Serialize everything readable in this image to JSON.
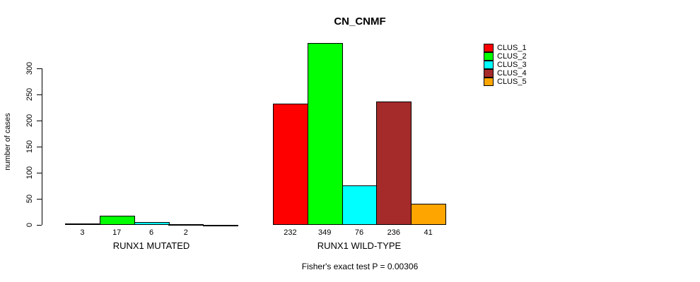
{
  "title": "CN_CNMF",
  "ylabel": "number of cases",
  "footer": "Fisher's exact test P = 0.00306",
  "legend": {
    "items": [
      {
        "label": "CLUS_1",
        "color": "#FF0000"
      },
      {
        "label": "CLUS_2",
        "color": "#00FF00"
      },
      {
        "label": "CLUS_3",
        "color": "#00FFFF"
      },
      {
        "label": "CLUS_4",
        "color": "#A52A2A"
      },
      {
        "label": "CLUS_5",
        "color": "#FFA500"
      }
    ]
  },
  "chart_data": {
    "type": "bar",
    "title": "CN_CNMF",
    "ylabel": "number of cases",
    "xlabel": "",
    "ylim": [
      0,
      300
    ],
    "yticks": [
      0,
      50,
      100,
      150,
      200,
      250,
      300
    ],
    "grid": false,
    "legend_position": "top-right",
    "series_names": [
      "CLUS_1",
      "CLUS_2",
      "CLUS_3",
      "CLUS_4",
      "CLUS_5"
    ],
    "series_colors": [
      "#FF0000",
      "#00FF00",
      "#00FFFF",
      "#A52A2A",
      "#FFA500"
    ],
    "groups": [
      {
        "label": "RUNX1 MUTATED",
        "values": [
          3,
          17,
          6,
          2,
          0
        ],
        "bar_labels": [
          "3",
          "17",
          "6",
          "2",
          ""
        ]
      },
      {
        "label": "RUNX1 WILD-TYPE",
        "values": [
          232,
          349,
          76,
          236,
          41
        ],
        "bar_labels": [
          "232",
          "349",
          "76",
          "236",
          "41"
        ]
      }
    ],
    "annotation": "Fisher's exact test P = 0.00306"
  }
}
